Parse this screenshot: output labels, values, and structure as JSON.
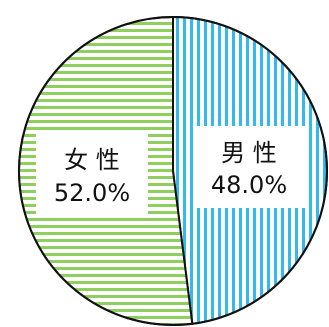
{
  "chart_data": {
    "type": "pie",
    "start_angle_deg": 0,
    "direction": "clockwise",
    "slices": [
      {
        "name": "男 性",
        "value": 48.0,
        "value_label": "48.0%",
        "color": "#33b8f0",
        "pattern": "vertical-stripes"
      },
      {
        "name": "女 性",
        "value": 52.0,
        "value_label": "52.0%",
        "color": "#8fcf5f",
        "pattern": "horizontal-stripes"
      }
    ]
  }
}
